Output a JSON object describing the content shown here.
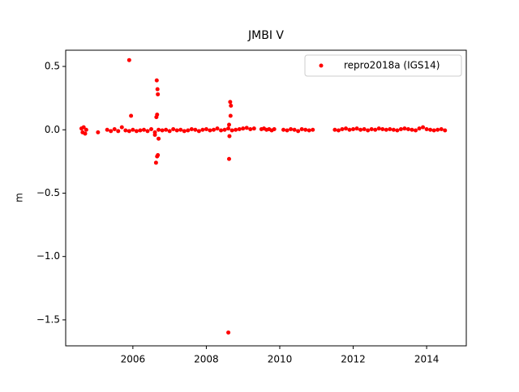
{
  "chart_data": {
    "type": "scatter",
    "title": "JMBI V",
    "y_label": "m",
    "series": [
      {
        "name": "repro2018a (IGS14)",
        "color": "#ff0000",
        "x": [
          2004.6,
          2004.63,
          2004.66,
          2004.7,
          2004.73,
          2005.05,
          2005.3,
          2005.4,
          2005.5,
          2005.6,
          2005.7,
          2005.8,
          2005.9,
          2006.0,
          2006.1,
          2006.2,
          2006.3,
          2006.4,
          2006.5,
          2006.6,
          2006.7,
          2006.8,
          2006.9,
          2007.0,
          2007.1,
          2007.2,
          2007.3,
          2007.4,
          2007.5,
          2007.6,
          2007.7,
          2007.8,
          2007.9,
          2008.0,
          2008.1,
          2008.2,
          2008.3,
          2008.4,
          2008.5,
          2008.6,
          2008.7,
          2008.8,
          2008.9,
          2009.0,
          2009.1,
          2009.2,
          2009.3,
          2009.5,
          2009.57,
          2009.64,
          2009.71,
          2009.78,
          2009.85,
          2010.1,
          2010.2,
          2010.3,
          2010.4,
          2010.5,
          2010.6,
          2010.7,
          2010.8,
          2010.9,
          2011.5,
          2011.6,
          2011.7,
          2011.8,
          2011.9,
          2012.0,
          2012.1,
          2012.2,
          2012.3,
          2012.4,
          2012.5,
          2012.6,
          2012.7,
          2012.8,
          2012.9,
          2013.0,
          2013.1,
          2013.2,
          2013.3,
          2013.4,
          2013.5,
          2013.6,
          2013.7,
          2013.8,
          2013.9,
          2014.0,
          2014.1,
          2014.2,
          2014.3,
          2014.4,
          2014.5,
          2005.9,
          2005.95,
          2006.65,
          2006.67,
          2006.68,
          2006.66,
          2006.64,
          2006.68,
          2006.66,
          2006.63,
          2006.7,
          2006.6,
          2008.65,
          2008.67,
          2008.66,
          2008.62,
          2008.63,
          2008.62,
          2008.6
        ],
        "values": [
          0.01,
          -0.02,
          0.02,
          -0.03,
          0.0,
          -0.02,
          0,
          -0.01,
          0.005,
          -0.01,
          0.02,
          -0.005,
          -0.01,
          0,
          -0.01,
          -0.005,
          0,
          -0.01,
          0.005,
          -0.02,
          0,
          -0.005,
          0,
          -0.01,
          0.005,
          -0.005,
          0,
          -0.01,
          -0.005,
          0.005,
          0,
          -0.01,
          0,
          0.005,
          -0.005,
          0,
          0.01,
          -0.005,
          0,
          0.01,
          -0.005,
          0,
          0.005,
          0.01,
          0.015,
          0.005,
          0.01,
          0.005,
          0.01,
          0,
          0.005,
          -0.005,
          0.005,
          0,
          -0.005,
          0.005,
          0,
          -0.01,
          0.005,
          0,
          -0.005,
          0,
          0,
          -0.005,
          0.005,
          0.01,
          0,
          0.005,
          0.01,
          0,
          0.005,
          -0.005,
          0.005,
          0,
          0.01,
          0.005,
          0,
          0.005,
          0,
          -0.005,
          0.005,
          0.01,
          0.005,
          0,
          -0.005,
          0.01,
          0.02,
          0.005,
          0,
          -0.005,
          0,
          0.005,
          -0.005,
          0.55,
          0.11,
          0.39,
          0.32,
          0.28,
          0.12,
          0.1,
          -0.2,
          -0.21,
          -0.26,
          -0.07,
          -0.04,
          0.22,
          0.19,
          0.11,
          0.04,
          -0.05,
          -0.23,
          -1.6
        ]
      }
    ],
    "xlim": [
      2004.17,
      2015.08
    ],
    "xticks": [
      2006,
      2008,
      2010,
      2012,
      2014
    ],
    "ylim": [
      -1.705,
      0.628
    ],
    "yticks": [
      {
        "value": -1.5,
        "label": "−1.5"
      },
      {
        "value": -1.0,
        "label": "−1.0"
      },
      {
        "value": -0.5,
        "label": "−0.5"
      },
      {
        "value": 0,
        "label": "0.0"
      },
      0.5
    ],
    "legend": "upper right",
    "grid": false
  }
}
